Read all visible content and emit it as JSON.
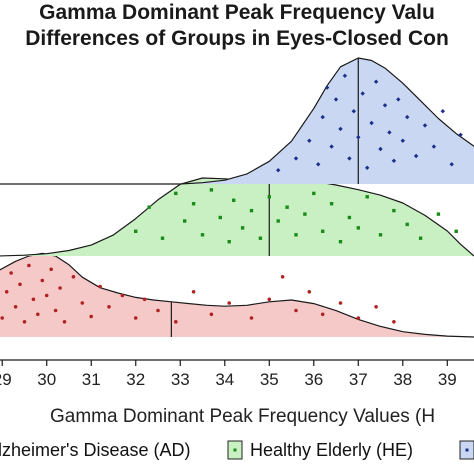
{
  "chart_data": {
    "type": "raincloud",
    "title_line1": "Gamma Dominant Peak Frequency Valu",
    "title_line2": "Differences of Groups in Eyes-Closed Con",
    "xlabel": "Gamma Dominant Peak Frequency Values (H",
    "xlim": [
      28.95,
      39.6
    ],
    "x_ticks": [
      "29",
      "30",
      "31",
      "32",
      "33",
      "34",
      "35",
      "36",
      "37",
      "38",
      "39"
    ],
    "legend": [
      {
        "label": "lzheimer's Disease (AD)",
        "fill": "#f6c9c9",
        "dot": "#b22222"
      },
      {
        "label": "Healthy Elderly (HE)",
        "fill": "#c9f0c2",
        "dot": "#1a8a1a"
      },
      {
        "label": "",
        "fill": "#c9d7f2",
        "dot": "#1c2f8a"
      }
    ],
    "series": [
      {
        "name": "Alzheimer's Disease (AD)",
        "median": 32.8,
        "fill": "#f6c9c9",
        "dot": "#b22222",
        "density_x": [
          28.9,
          29.3,
          29.6,
          29.9,
          30.2,
          30.5,
          30.8,
          31.2,
          31.6,
          32.0,
          32.4,
          32.8,
          33.2,
          33.6,
          34.0,
          34.5,
          35.0,
          35.5,
          36.0,
          36.5,
          37.0,
          37.5,
          38.0,
          38.5,
          39.0,
          39.6
        ],
        "density_y": [
          0.75,
          0.86,
          0.92,
          0.95,
          0.92,
          0.82,
          0.68,
          0.56,
          0.5,
          0.45,
          0.42,
          0.4,
          0.38,
          0.36,
          0.35,
          0.36,
          0.4,
          0.42,
          0.38,
          0.3,
          0.2,
          0.12,
          0.06,
          0.03,
          0.01,
          0.0
        ],
        "points": [
          [
            29.0,
            0.2
          ],
          [
            29.1,
            0.55
          ],
          [
            29.2,
            0.8
          ],
          [
            29.3,
            0.35
          ],
          [
            29.4,
            0.65
          ],
          [
            29.5,
            0.15
          ],
          [
            29.6,
            0.9
          ],
          [
            29.7,
            0.45
          ],
          [
            29.8,
            0.25
          ],
          [
            29.9,
            0.7
          ],
          [
            30.0,
            0.5
          ],
          [
            30.1,
            0.85
          ],
          [
            30.2,
            0.3
          ],
          [
            30.3,
            0.6
          ],
          [
            30.4,
            0.15
          ],
          [
            30.6,
            0.75
          ],
          [
            30.8,
            0.4
          ],
          [
            31.0,
            0.22
          ],
          [
            31.2,
            0.62
          ],
          [
            31.4,
            0.35
          ],
          [
            31.7,
            0.5
          ],
          [
            32.0,
            0.2
          ],
          [
            32.2,
            0.45
          ],
          [
            32.5,
            0.3
          ],
          [
            32.9,
            0.15
          ],
          [
            33.3,
            0.55
          ],
          [
            33.7,
            0.25
          ],
          [
            34.1,
            0.4
          ],
          [
            34.6,
            0.2
          ],
          [
            35.0,
            0.45
          ],
          [
            35.3,
            0.75
          ],
          [
            35.6,
            0.3
          ],
          [
            35.9,
            0.55
          ],
          [
            36.2,
            0.25
          ],
          [
            36.6,
            0.4
          ],
          [
            37.0,
            0.2
          ],
          [
            37.4,
            0.35
          ],
          [
            37.8,
            0.15
          ]
        ]
      },
      {
        "name": "Healthy Elderly (HE)",
        "median": 35.0,
        "fill": "#c9f0c2",
        "dot": "#1a8a1a",
        "density_x": [
          28.9,
          29.5,
          30.0,
          30.5,
          31.0,
          31.5,
          32.0,
          32.5,
          33.0,
          33.5,
          34.0,
          34.5,
          35.0,
          35.5,
          36.0,
          36.5,
          37.0,
          37.5,
          38.0,
          38.5,
          39.0,
          39.3,
          39.6
        ],
        "density_y": [
          0.0,
          0.01,
          0.03,
          0.07,
          0.14,
          0.27,
          0.48,
          0.72,
          0.92,
          1.0,
          0.99,
          0.97,
          0.96,
          0.97,
          0.96,
          0.91,
          0.85,
          0.78,
          0.68,
          0.52,
          0.32,
          0.15,
          0.0
        ],
        "points": [
          [
            32.0,
            0.3
          ],
          [
            32.3,
            0.65
          ],
          [
            32.6,
            0.2
          ],
          [
            32.9,
            0.85
          ],
          [
            33.1,
            0.45
          ],
          [
            33.3,
            0.7
          ],
          [
            33.5,
            0.25
          ],
          [
            33.7,
            0.9
          ],
          [
            33.9,
            0.5
          ],
          [
            34.1,
            0.15
          ],
          [
            34.2,
            0.75
          ],
          [
            34.4,
            0.35
          ],
          [
            34.6,
            0.6
          ],
          [
            34.8,
            0.2
          ],
          [
            35.0,
            0.8
          ],
          [
            35.2,
            0.45
          ],
          [
            35.4,
            0.65
          ],
          [
            35.6,
            0.25
          ],
          [
            35.8,
            0.55
          ],
          [
            36.0,
            0.85
          ],
          [
            36.2,
            0.3
          ],
          [
            36.4,
            0.7
          ],
          [
            36.6,
            0.15
          ],
          [
            36.8,
            0.5
          ],
          [
            37.0,
            0.35
          ],
          [
            37.2,
            0.8
          ],
          [
            37.5,
            0.25
          ],
          [
            37.8,
            0.6
          ],
          [
            38.1,
            0.4
          ],
          [
            38.4,
            0.2
          ],
          [
            38.8,
            0.55
          ],
          [
            39.2,
            0.3
          ]
        ]
      },
      {
        "name": "",
        "median": 37.0,
        "fill": "#c9d7f2",
        "dot": "#1c2f8a",
        "density_x": [
          28.9,
          31.0,
          33.0,
          33.5,
          34.0,
          34.5,
          35.0,
          35.5,
          36.0,
          36.3,
          36.6,
          37.0,
          37.3,
          37.6,
          38.0,
          38.4,
          38.8,
          39.2,
          39.6
        ],
        "density_y": [
          0.0,
          0.0,
          0.0,
          0.01,
          0.03,
          0.08,
          0.18,
          0.34,
          0.6,
          0.78,
          0.93,
          1.0,
          0.98,
          0.92,
          0.8,
          0.66,
          0.52,
          0.4,
          0.3
        ],
        "points": [
          [
            35.2,
            0.1
          ],
          [
            35.6,
            0.2
          ],
          [
            35.9,
            0.35
          ],
          [
            36.1,
            0.15
          ],
          [
            36.2,
            0.55
          ],
          [
            36.3,
            0.8
          ],
          [
            36.4,
            0.3
          ],
          [
            36.5,
            0.7
          ],
          [
            36.6,
            0.45
          ],
          [
            36.7,
            0.9
          ],
          [
            36.8,
            0.2
          ],
          [
            36.9,
            0.6
          ],
          [
            37.0,
            0.38
          ],
          [
            37.1,
            0.75
          ],
          [
            37.2,
            0.12
          ],
          [
            37.3,
            0.5
          ],
          [
            37.4,
            0.85
          ],
          [
            37.5,
            0.28
          ],
          [
            37.6,
            0.65
          ],
          [
            37.7,
            0.42
          ],
          [
            37.8,
            0.18
          ],
          [
            37.9,
            0.7
          ],
          [
            38.0,
            0.35
          ],
          [
            38.1,
            0.55
          ],
          [
            38.3,
            0.22
          ],
          [
            38.5,
            0.48
          ],
          [
            38.7,
            0.3
          ],
          [
            38.9,
            0.6
          ],
          [
            39.1,
            0.15
          ],
          [
            39.3,
            0.4
          ]
        ]
      }
    ]
  }
}
